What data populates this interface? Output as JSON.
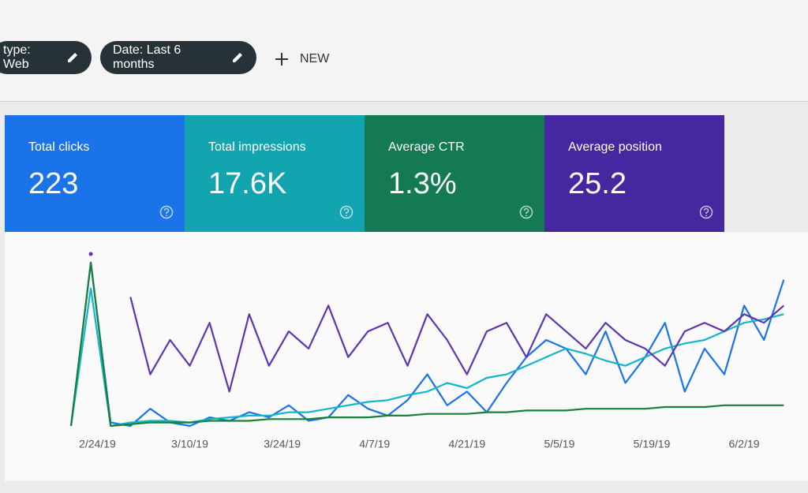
{
  "filters": {
    "type_chip": "type: Web",
    "date_chip": "Date: Last 6 months",
    "new_button": "NEW"
  },
  "metrics": [
    {
      "label": "Total clicks",
      "value": "223",
      "color": "#1a73e8"
    },
    {
      "label": "Total impressions",
      "value": "17.6K",
      "color": "#12a4af"
    },
    {
      "label": "Average CTR",
      "value": "1.3%",
      "color": "#137a53"
    },
    {
      "label": "Average position",
      "value": "25.2",
      "color": "#4527a0"
    }
  ],
  "chart_data": {
    "type": "line",
    "x": [
      0,
      3,
      6,
      9,
      12,
      15,
      18,
      21,
      24,
      27,
      30,
      33,
      36,
      39,
      42,
      45,
      48,
      51,
      54,
      57,
      60,
      63,
      66,
      69,
      72,
      75,
      78,
      81,
      84,
      87,
      90,
      93,
      96,
      99,
      102,
      105,
      108
    ],
    "xlim": [
      0,
      110
    ],
    "xticks": [
      {
        "value": 4,
        "label": "2/24/19"
      },
      {
        "value": 18,
        "label": "3/10/19"
      },
      {
        "value": 32,
        "label": "3/24/19"
      },
      {
        "value": 46,
        "label": "4/7/19"
      },
      {
        "value": 60,
        "label": "4/21/19"
      },
      {
        "value": 74,
        "label": "5/5/19"
      },
      {
        "value": 88,
        "label": "5/19/19"
      },
      {
        "value": 102,
        "label": "6/2/19"
      }
    ],
    "ylim": [
      0,
      100
    ],
    "grid": false,
    "series": [
      {
        "color": "#1a73e8",
        "values": [
          0,
          95,
          2,
          0,
          10,
          2,
          0,
          5,
          3,
          8,
          5,
          12,
          3,
          5,
          18,
          10,
          6,
          15,
          30,
          12,
          20,
          8,
          25,
          40,
          50,
          45,
          30,
          55,
          25,
          40,
          60,
          20,
          45,
          30,
          70,
          50,
          85
        ]
      },
      {
        "color": "#12b5cb",
        "values": [
          0,
          80,
          0,
          2,
          3,
          3,
          2,
          4,
          5,
          6,
          6,
          8,
          8,
          10,
          12,
          14,
          15,
          18,
          20,
          25,
          22,
          28,
          30,
          35,
          40,
          45,
          42,
          38,
          35,
          40,
          45,
          48,
          50,
          55,
          60,
          62,
          65
        ]
      },
      {
        "color": "#188038",
        "values": [
          0,
          95,
          0,
          1,
          2,
          2,
          2,
          3,
          3,
          3,
          4,
          4,
          4,
          5,
          5,
          5,
          6,
          6,
          7,
          7,
          7,
          8,
          8,
          9,
          9,
          9,
          10,
          10,
          10,
          10,
          11,
          11,
          11,
          12,
          12,
          12,
          12
        ]
      },
      {
        "color": "#5e35b1",
        "values": [
          null,
          100,
          null,
          75,
          30,
          50,
          35,
          60,
          20,
          65,
          35,
          55,
          45,
          70,
          40,
          55,
          60,
          35,
          65,
          50,
          30,
          55,
          60,
          40,
          65,
          55,
          45,
          60,
          50,
          45,
          35,
          55,
          60,
          55,
          65,
          60,
          70
        ]
      }
    ]
  }
}
